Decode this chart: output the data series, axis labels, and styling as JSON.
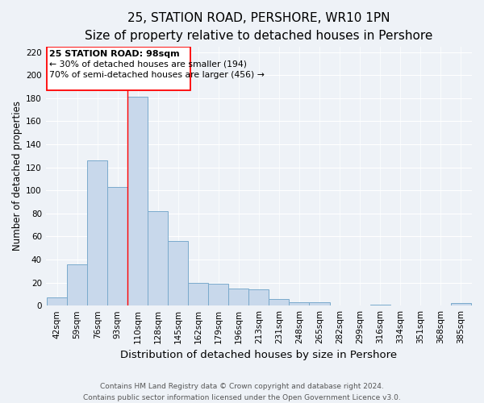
{
  "title": "25, STATION ROAD, PERSHORE, WR10 1PN",
  "subtitle": "Size of property relative to detached houses in Pershore",
  "xlabel": "Distribution of detached houses by size in Pershore",
  "ylabel": "Number of detached properties",
  "bar_labels": [
    "42sqm",
    "59sqm",
    "76sqm",
    "93sqm",
    "110sqm",
    "128sqm",
    "145sqm",
    "162sqm",
    "179sqm",
    "196sqm",
    "213sqm",
    "231sqm",
    "248sqm",
    "265sqm",
    "282sqm",
    "299sqm",
    "316sqm",
    "334sqm",
    "351sqm",
    "368sqm",
    "385sqm"
  ],
  "bar_values": [
    7,
    36,
    126,
    103,
    181,
    82,
    56,
    20,
    19,
    15,
    14,
    6,
    3,
    3,
    0,
    0,
    1,
    0,
    0,
    0,
    2
  ],
  "bar_color": "#c8d8eb",
  "bar_edge_color": "#7aaacc",
  "ylim": [
    0,
    225
  ],
  "yticks": [
    0,
    20,
    40,
    60,
    80,
    100,
    120,
    140,
    160,
    180,
    200,
    220
  ],
  "property_line_label": "25 STATION ROAD: 98sqm",
  "annotation_line1": "← 30% of detached houses are smaller (194)",
  "annotation_line2": "70% of semi-detached houses are larger (456) →",
  "footer_line1": "Contains HM Land Registry data © Crown copyright and database right 2024.",
  "footer_line2": "Contains public sector information licensed under the Open Government Licence v3.0.",
  "background_color": "#eef2f7",
  "grid_color": "#ffffff",
  "title_fontsize": 11,
  "subtitle_fontsize": 9,
  "tick_fontsize": 7.5,
  "ylabel_fontsize": 8.5,
  "xlabel_fontsize": 9.5,
  "footer_fontsize": 6.5
}
